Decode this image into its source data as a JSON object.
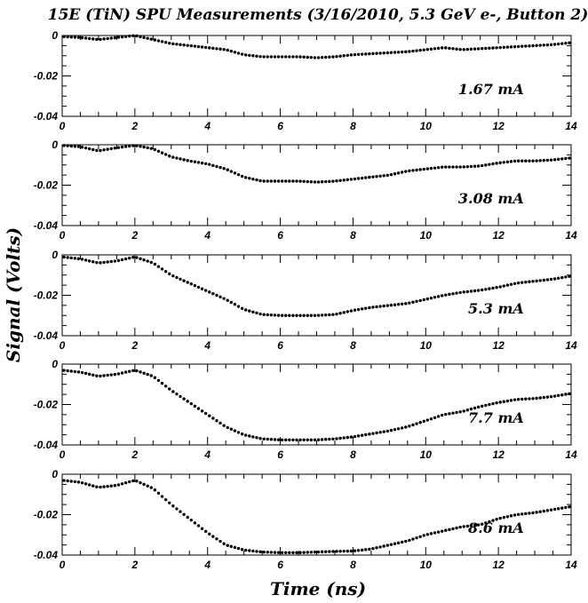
{
  "figure": {
    "title": "15E (TiN) SPU Measurements (3/16/2010, 5.3 GeV e-, Button 2)",
    "xlabel": "Time (ns)",
    "ylabel": "Signal (Volts)"
  },
  "chart_data": [
    {
      "type": "scatter",
      "annotation": "1.67 mA",
      "xlim": [
        0,
        14
      ],
      "ylim": [
        -0.04,
        0
      ],
      "xticks": [
        "0",
        "2",
        "4",
        "6",
        "8",
        "10",
        "12",
        "14"
      ],
      "yticks": [
        "0",
        "-0.02",
        "-0.04"
      ],
      "points": [
        [
          0,
          -0.0005
        ],
        [
          0.5,
          -0.001
        ],
        [
          1,
          -0.002
        ],
        [
          1.5,
          -0.001
        ],
        [
          2,
          0.0
        ],
        [
          2.5,
          -0.002
        ],
        [
          3,
          -0.004
        ],
        [
          3.5,
          -0.005
        ],
        [
          4,
          -0.006
        ],
        [
          4.5,
          -0.007
        ],
        [
          5,
          -0.0095
        ],
        [
          5.5,
          -0.0105
        ],
        [
          6,
          -0.0105
        ],
        [
          6.5,
          -0.0105
        ],
        [
          7,
          -0.011
        ],
        [
          7.5,
          -0.0105
        ],
        [
          8,
          -0.0095
        ],
        [
          8.5,
          -0.009
        ],
        [
          9,
          -0.0085
        ],
        [
          9.5,
          -0.008
        ],
        [
          10,
          -0.007
        ],
        [
          10.5,
          -0.006
        ],
        [
          11,
          -0.007
        ],
        [
          11.5,
          -0.0065
        ],
        [
          12,
          -0.006
        ],
        [
          12.5,
          -0.0055
        ],
        [
          13,
          -0.005
        ],
        [
          13.5,
          -0.0045
        ],
        [
          14,
          -0.0035
        ]
      ]
    },
    {
      "type": "scatter",
      "annotation": "3.08 mA",
      "xlim": [
        0,
        14
      ],
      "ylim": [
        -0.04,
        0
      ],
      "xticks": [
        "0",
        "2",
        "4",
        "6",
        "8",
        "10",
        "12",
        "14"
      ],
      "yticks": [
        "0",
        "-0.02",
        "-0.04"
      ],
      "points": [
        [
          0,
          -0.0003
        ],
        [
          0.5,
          -0.001
        ],
        [
          1,
          -0.003
        ],
        [
          1.5,
          -0.0015
        ],
        [
          2,
          -0.0003
        ],
        [
          2.5,
          -0.002
        ],
        [
          3,
          -0.006
        ],
        [
          3.5,
          -0.008
        ],
        [
          4,
          -0.0095
        ],
        [
          4.5,
          -0.012
        ],
        [
          5,
          -0.016
        ],
        [
          5.5,
          -0.018
        ],
        [
          6,
          -0.018
        ],
        [
          6.5,
          -0.018
        ],
        [
          7,
          -0.0185
        ],
        [
          7.5,
          -0.018
        ],
        [
          8,
          -0.017
        ],
        [
          8.5,
          -0.016
        ],
        [
          9,
          -0.015
        ],
        [
          9.5,
          -0.013
        ],
        [
          10,
          -0.012
        ],
        [
          10.5,
          -0.011
        ],
        [
          11,
          -0.011
        ],
        [
          11.5,
          -0.0105
        ],
        [
          12,
          -0.009
        ],
        [
          12.5,
          -0.008
        ],
        [
          13,
          -0.008
        ],
        [
          13.5,
          -0.0075
        ],
        [
          14,
          -0.0065
        ]
      ]
    },
    {
      "type": "scatter",
      "annotation": "5.3 mA",
      "xlim": [
        0,
        14
      ],
      "ylim": [
        -0.04,
        0
      ],
      "xticks": [
        "0",
        "2",
        "4",
        "6",
        "8",
        "10",
        "12",
        "14"
      ],
      "yticks": [
        "0",
        "-0.02",
        "-0.04"
      ],
      "points": [
        [
          0,
          -0.001
        ],
        [
          0.5,
          -0.002
        ],
        [
          1,
          -0.004
        ],
        [
          1.5,
          -0.003
        ],
        [
          2,
          -0.001
        ],
        [
          2.5,
          -0.004
        ],
        [
          3,
          -0.01
        ],
        [
          3.5,
          -0.014
        ],
        [
          4,
          -0.018
        ],
        [
          4.5,
          -0.022
        ],
        [
          5,
          -0.027
        ],
        [
          5.5,
          -0.0295
        ],
        [
          6,
          -0.03
        ],
        [
          6.5,
          -0.03
        ],
        [
          7,
          -0.03
        ],
        [
          7.5,
          -0.0295
        ],
        [
          8,
          -0.0275
        ],
        [
          8.5,
          -0.026
        ],
        [
          9,
          -0.025
        ],
        [
          9.5,
          -0.024
        ],
        [
          10,
          -0.022
        ],
        [
          10.5,
          -0.02
        ],
        [
          11,
          -0.0185
        ],
        [
          11.5,
          -0.0175
        ],
        [
          12,
          -0.016
        ],
        [
          12.5,
          -0.014
        ],
        [
          13,
          -0.013
        ],
        [
          13.5,
          -0.012
        ],
        [
          14,
          -0.0105
        ]
      ]
    },
    {
      "type": "scatter",
      "annotation": "7.7 mA",
      "xlim": [
        0,
        14
      ],
      "ylim": [
        -0.04,
        0
      ],
      "xticks": [
        "0",
        "2",
        "4",
        "6",
        "8",
        "10",
        "12",
        "14"
      ],
      "yticks": [
        "0",
        "-0.02",
        "-0.04"
      ],
      "points": [
        [
          0,
          -0.003
        ],
        [
          0.5,
          -0.004
        ],
        [
          1,
          -0.006
        ],
        [
          1.5,
          -0.005
        ],
        [
          2,
          -0.003
        ],
        [
          2.5,
          -0.006
        ],
        [
          3,
          -0.013
        ],
        [
          3.5,
          -0.019
        ],
        [
          4,
          -0.025
        ],
        [
          4.5,
          -0.031
        ],
        [
          5,
          -0.035
        ],
        [
          5.5,
          -0.037
        ],
        [
          6,
          -0.0375
        ],
        [
          6.5,
          -0.0375
        ],
        [
          7,
          -0.0375
        ],
        [
          7.5,
          -0.037
        ],
        [
          8,
          -0.036
        ],
        [
          8.5,
          -0.0345
        ],
        [
          9,
          -0.033
        ],
        [
          9.5,
          -0.031
        ],
        [
          10,
          -0.028
        ],
        [
          10.5,
          -0.025
        ],
        [
          11,
          -0.0235
        ],
        [
          11.5,
          -0.021
        ],
        [
          12,
          -0.019
        ],
        [
          12.5,
          -0.0175
        ],
        [
          13,
          -0.017
        ],
        [
          13.5,
          -0.016
        ],
        [
          14,
          -0.0145
        ]
      ]
    },
    {
      "type": "scatter",
      "annotation": "8.6 mA",
      "xlim": [
        0,
        14
      ],
      "ylim": [
        -0.04,
        0
      ],
      "xticks": [
        "0",
        "2",
        "4",
        "6",
        "8",
        "10",
        "12",
        "14"
      ],
      "yticks": [
        "0",
        "-0.02",
        "-0.04"
      ],
      "points": [
        [
          0,
          -0.003
        ],
        [
          0.5,
          -0.004
        ],
        [
          1,
          -0.0065
        ],
        [
          1.5,
          -0.0055
        ],
        [
          2,
          -0.003
        ],
        [
          2.5,
          -0.007
        ],
        [
          3,
          -0.015
        ],
        [
          3.5,
          -0.022
        ],
        [
          4,
          -0.029
        ],
        [
          4.5,
          -0.035
        ],
        [
          5,
          -0.0375
        ],
        [
          5.5,
          -0.0385
        ],
        [
          6,
          -0.0388
        ],
        [
          6.5,
          -0.0388
        ],
        [
          7,
          -0.0385
        ],
        [
          7.5,
          -0.0382
        ],
        [
          8,
          -0.038
        ],
        [
          8.5,
          -0.037
        ],
        [
          9,
          -0.035
        ],
        [
          9.5,
          -0.033
        ],
        [
          10,
          -0.03
        ],
        [
          10.5,
          -0.028
        ],
        [
          11,
          -0.026
        ],
        [
          11.5,
          -0.025
        ],
        [
          12,
          -0.022
        ],
        [
          12.5,
          -0.02
        ],
        [
          13,
          -0.019
        ],
        [
          13.5,
          -0.0175
        ],
        [
          14,
          -0.016
        ]
      ]
    }
  ]
}
